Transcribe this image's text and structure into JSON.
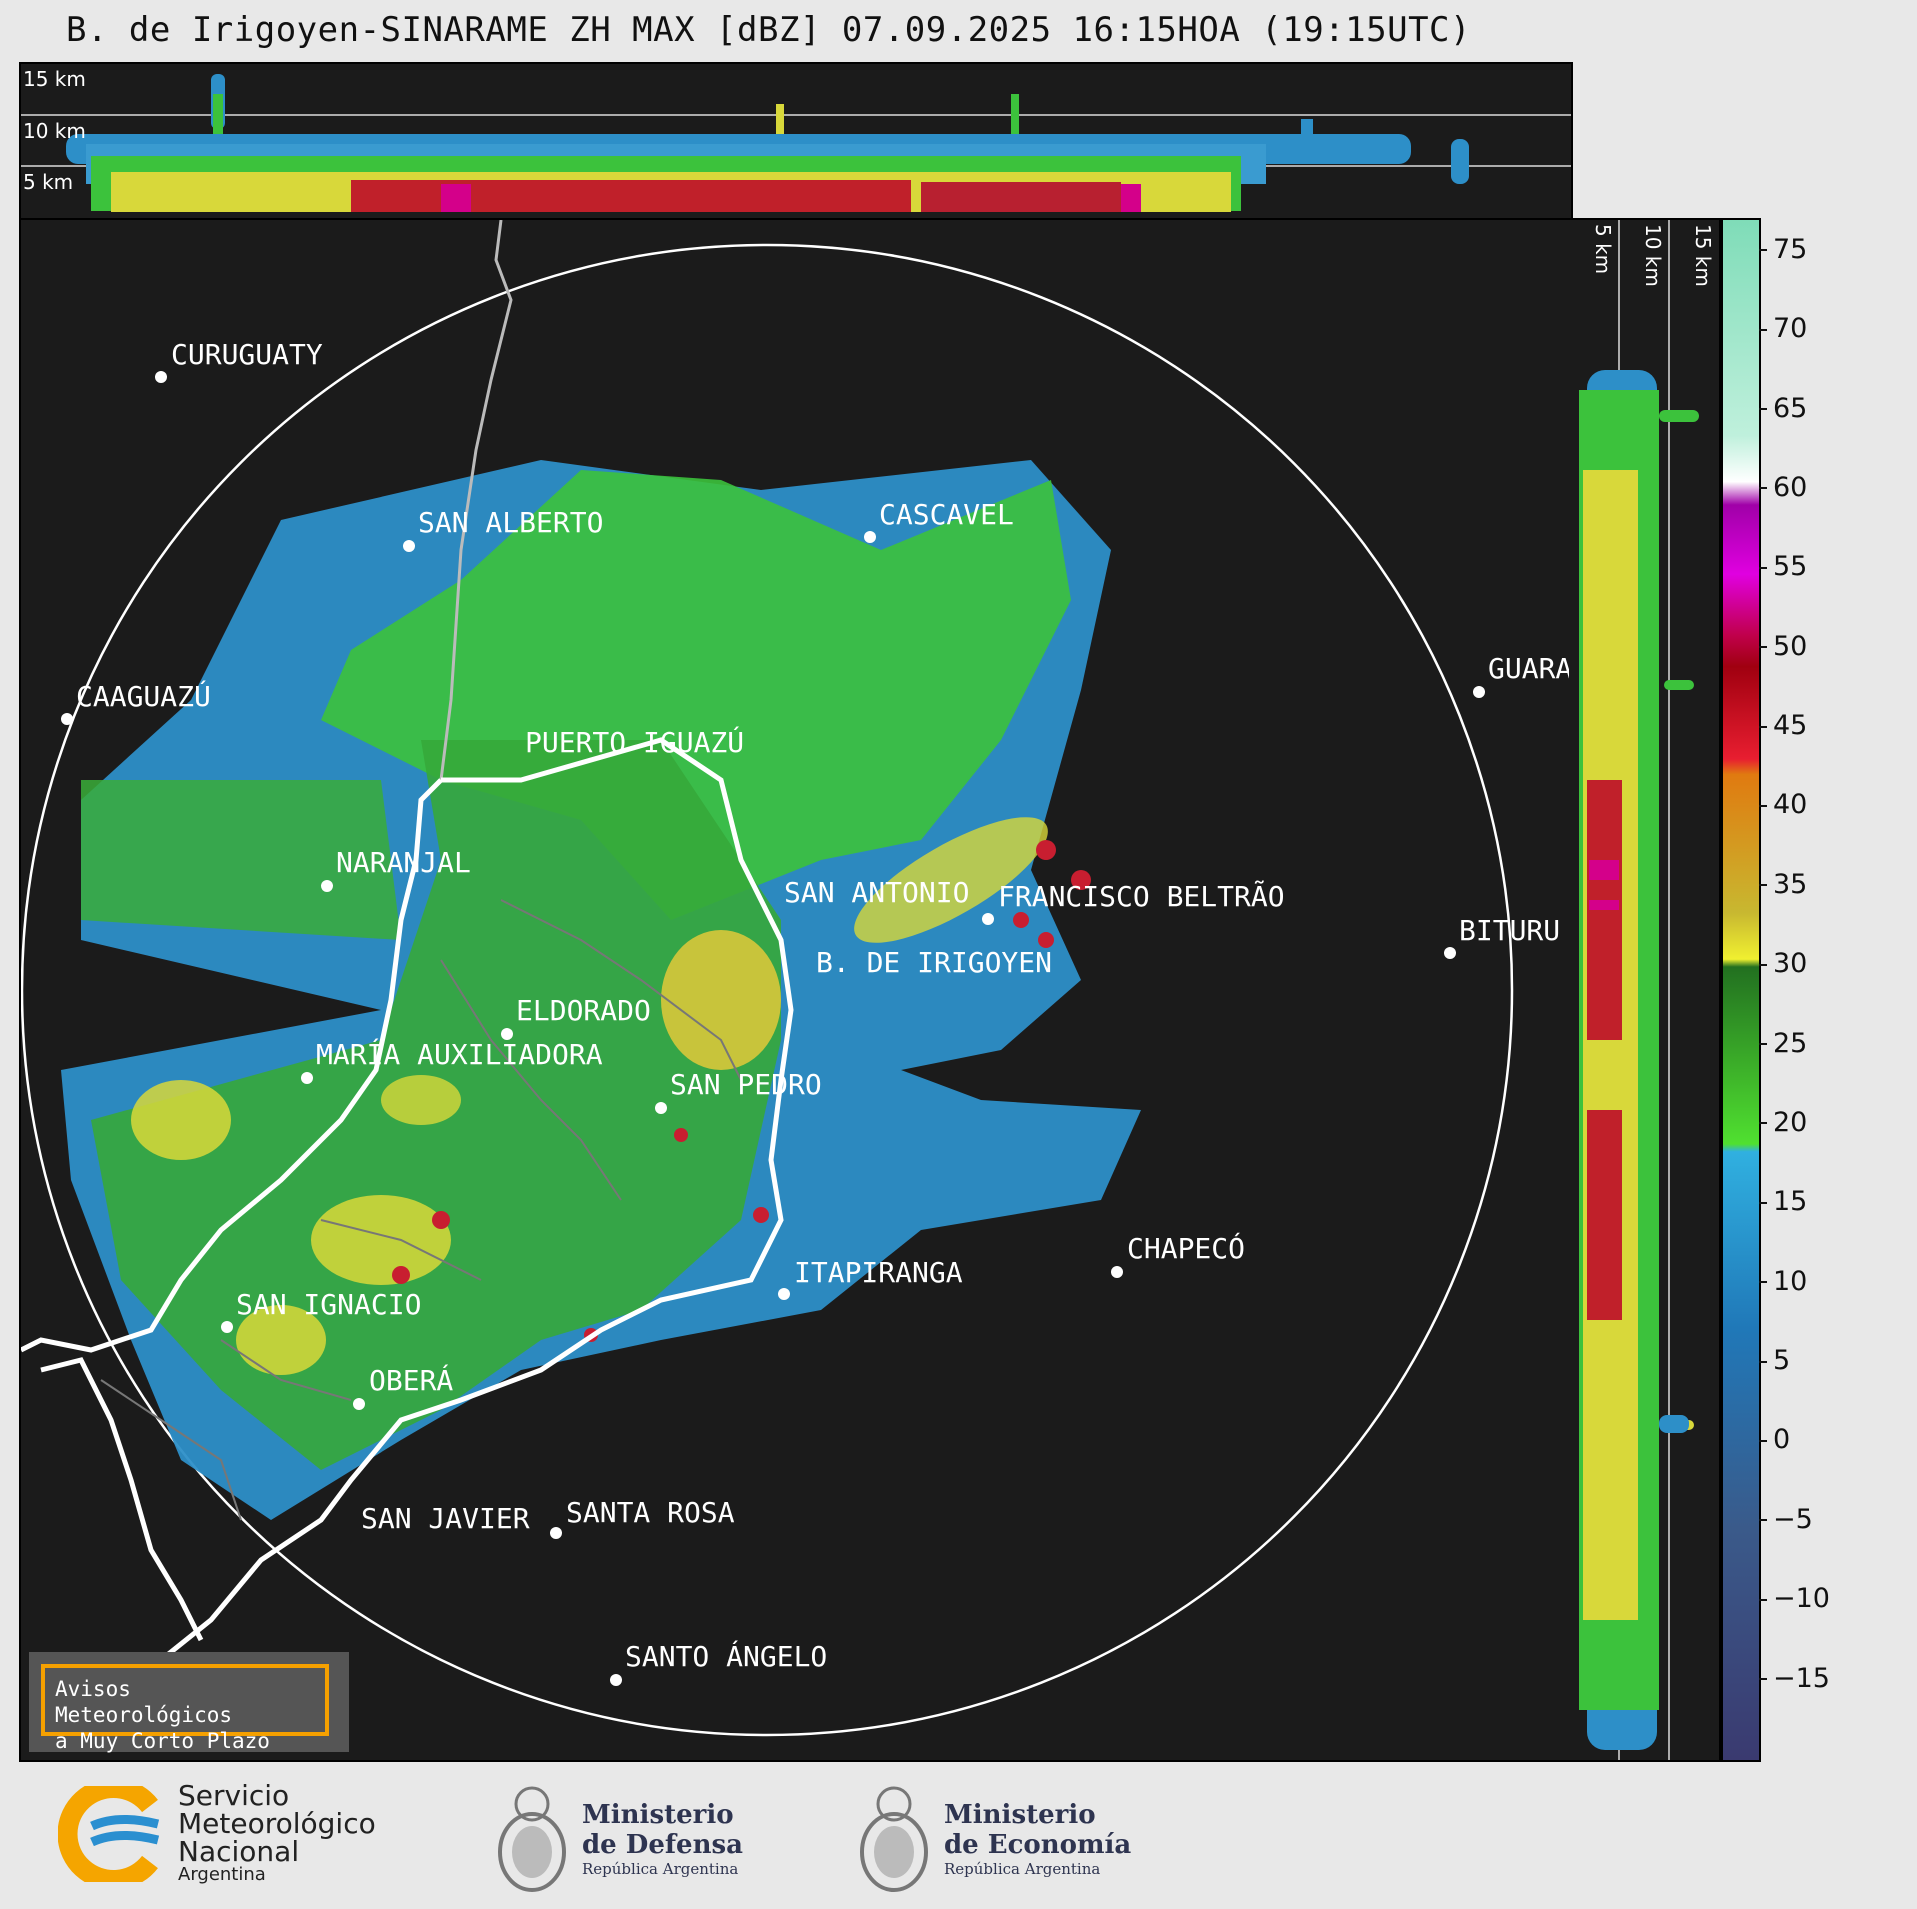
{
  "header": {
    "title": "B. de Irigoyen-SINARAME ZH MAX [dBZ] 07.09.2025 16:15HOA (19:15UTC)"
  },
  "top_strip": {
    "height_labels": [
      "15 km",
      "10 km",
      "5 km"
    ]
  },
  "side_strip": {
    "height_labels": [
      "5 km",
      "10 km",
      "15 km"
    ]
  },
  "colorbar": {
    "unit": "dBZ",
    "range": [
      -20,
      77
    ],
    "ticks": [
      "75",
      "70",
      "65",
      "60",
      "55",
      "50",
      "45",
      "40",
      "35",
      "30",
      "25",
      "20",
      "15",
      "10",
      "5",
      "0",
      "−5",
      "−10",
      "−15"
    ],
    "tick_values": [
      75,
      70,
      65,
      60,
      55,
      50,
      45,
      40,
      35,
      30,
      25,
      20,
      15,
      10,
      5,
      0,
      -5,
      -10,
      -15
    ]
  },
  "cities": [
    {
      "name": "CURUGUATY"
    },
    {
      "name": "SAN ALBERTO"
    },
    {
      "name": "CASCAVEL"
    },
    {
      "name": "CAAGUAZÚ"
    },
    {
      "name": "GUARA"
    },
    {
      "name": "PUERTO IGUAZÚ"
    },
    {
      "name": "NARANJAL"
    },
    {
      "name": "SAN ANTONIO"
    },
    {
      "name": "FRANCISCO BELTRÃO"
    },
    {
      "name": "BITURU"
    },
    {
      "name": "B. DE IRIGOYEN"
    },
    {
      "name": "ELDORADO"
    },
    {
      "name": "MARÍA AUXILIADORA"
    },
    {
      "name": "SAN PEDRO"
    },
    {
      "name": "CHAPECÓ"
    },
    {
      "name": "ITAPIRANGA"
    },
    {
      "name": "SAN IGNACIO"
    },
    {
      "name": "OBERÁ"
    },
    {
      "name": "SAN JAVIER"
    },
    {
      "name": "SANTA ROSA"
    },
    {
      "name": "SANTO ÁNGELO"
    }
  ],
  "notice": {
    "line1": "Avisos Meteorológicos",
    "line2": "a Muy Corto Plazo"
  },
  "footer": {
    "smn_line1": "Servicio",
    "smn_line2": "Meteorológico",
    "smn_line3": "Nacional",
    "smn_line4": "Argentina",
    "defensa_line1": "Ministerio",
    "defensa_line2": "de Defensa",
    "defensa_line3": "República Argentina",
    "economia_line1": "Ministerio",
    "economia_line2": "de Economía",
    "economia_line3": "República Argentina"
  },
  "colors": {
    "background": "#e8e8e8",
    "plot_bg": "#1b1b1b",
    "notice_border": "#f5a000",
    "smn_orange": "#f5a500",
    "smn_blue": "#2a8fd0"
  }
}
